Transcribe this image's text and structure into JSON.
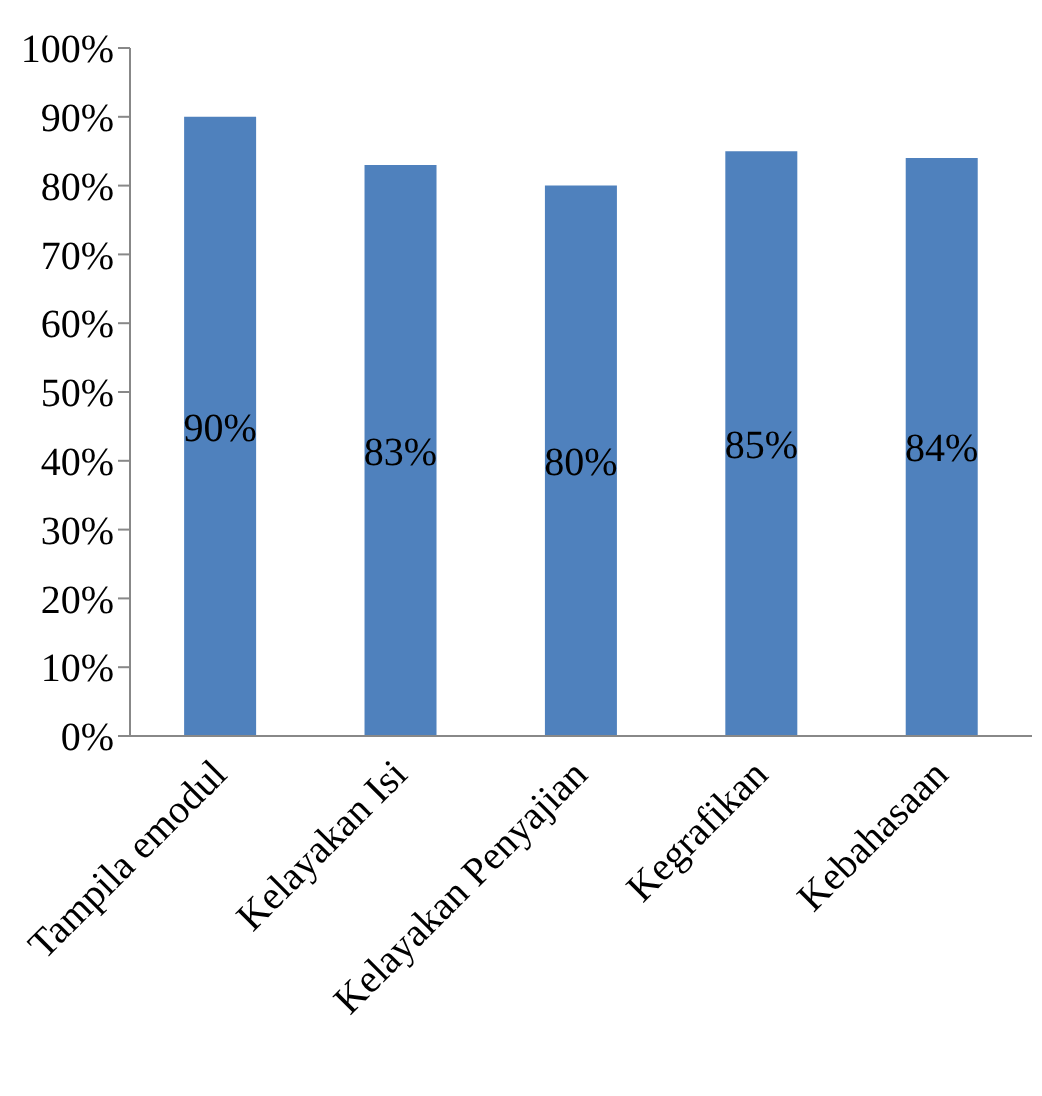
{
  "chart_data": {
    "type": "bar",
    "categories": [
      "Tampila emodul",
      "Kelayakan Isi",
      "Kelayakan Penyajian",
      "Kegrafikan",
      "Kebahasaan"
    ],
    "values": [
      90,
      83,
      80,
      85,
      84
    ],
    "value_labels": [
      "90%",
      "83%",
      "80%",
      "85%",
      "84%"
    ],
    "color": "#4f81bd",
    "ylim": [
      0,
      100
    ],
    "yticks": [
      {
        "value": 0,
        "label": "0%"
      },
      {
        "value": 10,
        "label": "10%"
      },
      {
        "value": 20,
        "label": "20%"
      },
      {
        "value": 30,
        "label": "30%"
      },
      {
        "value": 40,
        "label": "40%"
      },
      {
        "value": 50,
        "label": "50%"
      },
      {
        "value": 60,
        "label": "60%"
      },
      {
        "value": 70,
        "label": "70%"
      },
      {
        "value": 80,
        "label": "80%"
      },
      {
        "value": 90,
        "label": "90%"
      },
      {
        "value": 100,
        "label": "100%"
      }
    ],
    "grid": false
  }
}
